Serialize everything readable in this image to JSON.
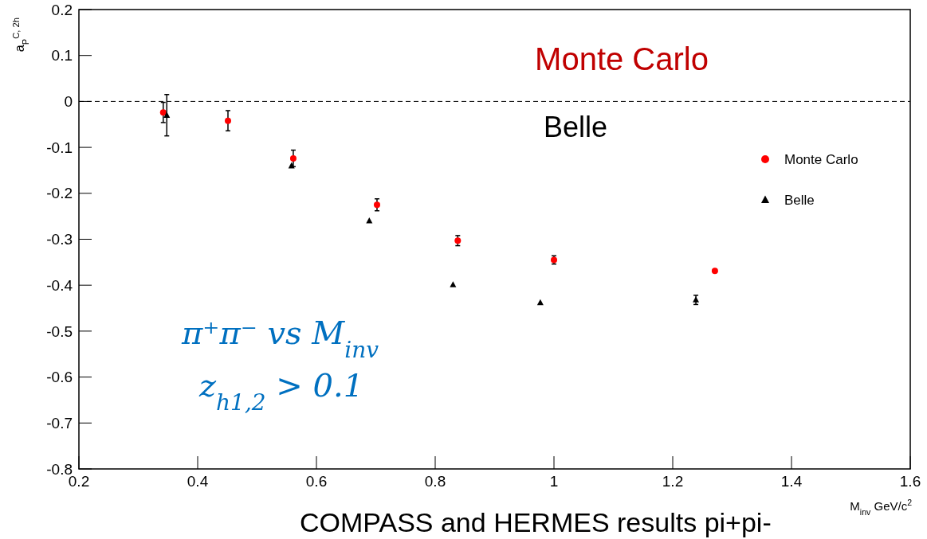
{
  "chart_data": {
    "type": "scatter",
    "xlabel": "M$_{inv}$ GeV/c$^{2}$",
    "ylabel": "a$_{P}$$^{C, 2h}$",
    "xlim": [
      0.2,
      1.6
    ],
    "xticks": [
      0.2,
      0.4,
      0.6,
      0.8,
      1,
      1.2,
      1.4,
      1.6
    ],
    "ylim": [
      -0.8,
      0.2
    ],
    "yticks": [
      -0.8,
      -0.7,
      -0.6,
      -0.5,
      -0.4,
      -0.3,
      -0.2,
      -0.1,
      0,
      0.1,
      0.2
    ],
    "legend": "right",
    "grid": false,
    "ref_lines": [
      {
        "axis": "y",
        "value": 0,
        "line_style": "dashed",
        "color": "#000000"
      }
    ],
    "series": [
      {
        "name": "Monte Carlo",
        "color": "#ff0000",
        "marker": "circle",
        "x": [
          0.342,
          0.451,
          0.561,
          0.702,
          0.838,
          1.0,
          1.271
        ],
        "values": [
          -0.024,
          -0.042,
          -0.124,
          -0.225,
          -0.303,
          -0.345,
          -0.369
        ],
        "errors": [
          0.022,
          0.022,
          0.018,
          0.013,
          0.011,
          0.009,
          null
        ]
      },
      {
        "name": "Belle",
        "color": "#000000",
        "marker": "triangle",
        "x": [
          0.348,
          0.558,
          0.689,
          0.83,
          0.977,
          1.239
        ],
        "values": [
          -0.03,
          -0.14,
          -0.26,
          -0.399,
          -0.438,
          -0.432
        ],
        "errors": [
          0.045,
          null,
          null,
          null,
          null,
          0.01
        ]
      }
    ],
    "annotations": [
      "Monte Carlo",
      "Belle",
      "π⁺π⁻ vs M$_{inv}$",
      "z$_{h1,2}$ > 0.1",
      "COMPASS   and HERMES results pi+pi-"
    ]
  }
}
